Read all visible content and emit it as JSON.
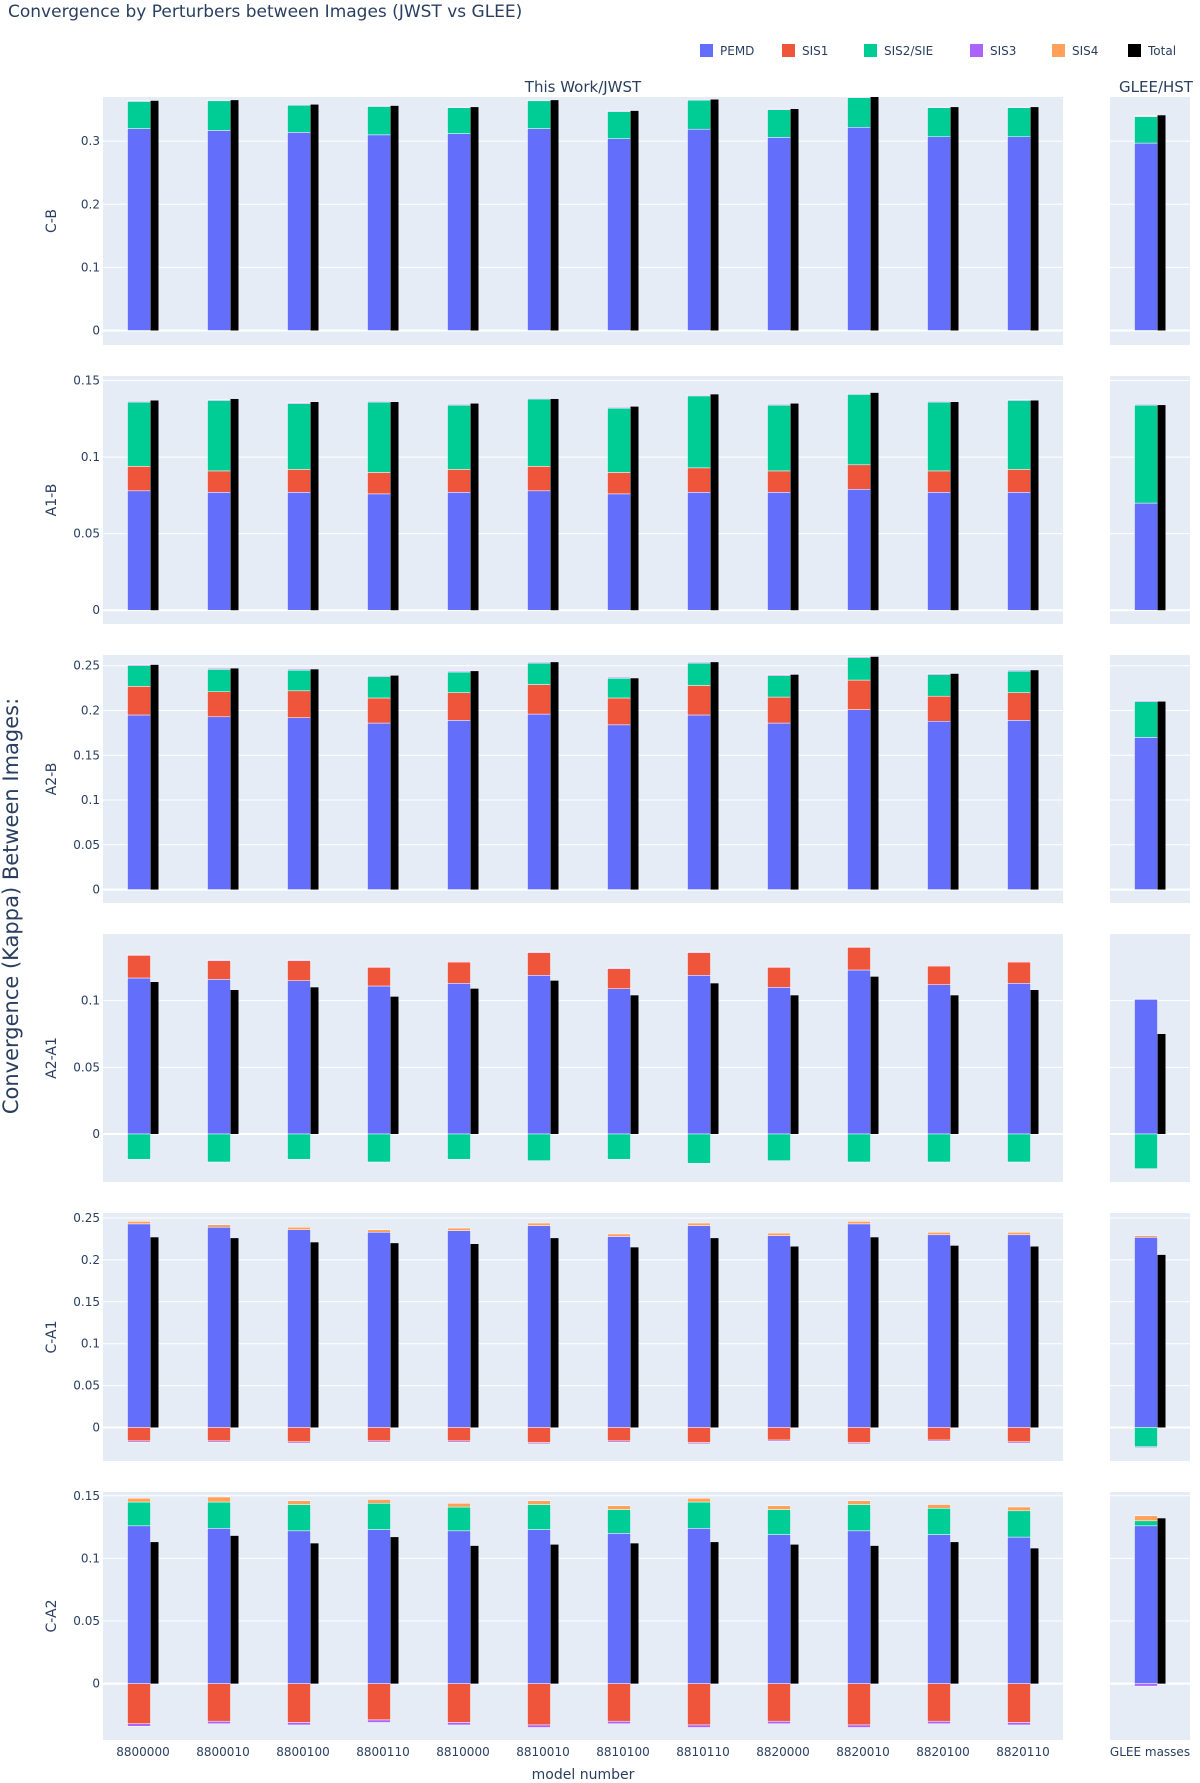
{
  "title": "Convergence by Perturbers between Images (JWST vs GLEE)",
  "legend": {
    "placement": "top-right, horizontal",
    "items": [
      {
        "name": "PEMD",
        "color": "#636EFA"
      },
      {
        "name": "SIS1",
        "color": "#EF553B"
      },
      {
        "name": "SIS2/SIE",
        "color": "#00CC96"
      },
      {
        "name": "SIS3",
        "color": "#AB63FA"
      },
      {
        "name": "SIS4",
        "color": "#FFA15A"
      },
      {
        "name": "Total",
        "color": "#000000"
      }
    ]
  },
  "subplot_titles": {
    "left": "This Work/JWST",
    "right": "GLEE/HST"
  },
  "ylabel": "Convergence (Kappa) Between Images:",
  "xlabel": "model number",
  "chart_data": {
    "type": "bar",
    "barmode": "relative stacked, with Total bar beside each stack",
    "grid": true,
    "categories": [
      "8800000",
      "8800010",
      "8800100",
      "8800110",
      "8810000",
      "8810010",
      "8810100",
      "8810110",
      "8820000",
      "8820010",
      "8820100",
      "8820110"
    ],
    "glee_category": "GLEE masses",
    "series_names": [
      "PEMD",
      "SIS1",
      "SIS2/SIE",
      "SIS3",
      "SIS4"
    ],
    "panels": [
      {
        "label": "C-B",
        "ylim": [
          -0.023,
          0.37
        ],
        "yticks": [
          0,
          0.1,
          0.2,
          0.3
        ],
        "ytick_labels": [
          "0",
          "0.1",
          "0.2",
          "0.3"
        ],
        "series": [
          {
            "name": "PEMD",
            "values": [
              0.32,
              0.317,
              0.314,
              0.31,
              0.312,
              0.32,
              0.304,
              0.319,
              0.306,
              0.322,
              0.307,
              0.307
            ]
          },
          {
            "name": "SIS1",
            "values": [
              0,
              0,
              0,
              0,
              0,
              0,
              0,
              0,
              0,
              0,
              0,
              0
            ]
          },
          {
            "name": "SIS2/SIE",
            "values": [
              0.043,
              0.047,
              0.043,
              0.045,
              0.041,
              0.044,
              0.043,
              0.046,
              0.044,
              0.047,
              0.046,
              0.046
            ]
          },
          {
            "name": "SIS3",
            "values": [
              0.001,
              0.001,
              0.001,
              0.001,
              0.001,
              0.001,
              0.001,
              0.001,
              0.001,
              0.001,
              0.001,
              0.001
            ]
          },
          {
            "name": "SIS4",
            "values": [
              0,
              0,
              0,
              0,
              0,
              0,
              0,
              0,
              0,
              0,
              0,
              0
            ]
          }
        ],
        "total": [
          0.364,
          0.365,
          0.358,
          0.356,
          0.354,
          0.365,
          0.348,
          0.366,
          0.351,
          0.37,
          0.354,
          0.354
        ],
        "glee": {
          "PEMD": 0.297,
          "SIS1": 0,
          "SIS2/SIE": 0.042,
          "SIS3": 0.001,
          "SIS4": 0.001,
          "Total": 0.341
        }
      },
      {
        "label": "A1-B",
        "ylim": [
          -0.009,
          0.153
        ],
        "yticks": [
          0,
          0.05,
          0.1,
          0.15
        ],
        "ytick_labels": [
          "0",
          "0.05",
          "0.1",
          "0.15"
        ],
        "series": [
          {
            "name": "PEMD",
            "values": [
              0.078,
              0.077,
              0.077,
              0.076,
              0.077,
              0.078,
              0.076,
              0.077,
              0.077,
              0.079,
              0.077,
              0.077
            ]
          },
          {
            "name": "SIS1",
            "values": [
              0.016,
              0.014,
              0.015,
              0.014,
              0.015,
              0.016,
              0.014,
              0.016,
              0.014,
              0.016,
              0.014,
              0.015
            ]
          },
          {
            "name": "SIS2/SIE",
            "values": [
              0.042,
              0.046,
              0.043,
              0.046,
              0.042,
              0.044,
              0.042,
              0.047,
              0.043,
              0.046,
              0.045,
              0.045
            ]
          },
          {
            "name": "SIS3",
            "values": [
              0.0005,
              0.0005,
              0.0005,
              0.0005,
              0.0005,
              0.0005,
              0.0005,
              0.0005,
              0.0005,
              0.0005,
              0.0005,
              0.0005
            ]
          },
          {
            "name": "SIS4",
            "values": [
              0,
              0,
              0,
              0,
              0,
              0,
              0,
              0,
              0,
              0,
              0,
              0
            ]
          }
        ],
        "total": [
          0.137,
          0.138,
          0.136,
          0.136,
          0.135,
          0.138,
          0.133,
          0.141,
          0.135,
          0.142,
          0.136,
          0.137
        ],
        "glee": {
          "PEMD": 0.07,
          "SIS1": 0,
          "SIS2/SIE": 0.064,
          "SIS3": 0.0005,
          "SIS4": 0,
          "Total": 0.134
        }
      },
      {
        "label": "A2-B",
        "ylim": [
          -0.015,
          0.262
        ],
        "yticks": [
          0,
          0.05,
          0.1,
          0.15,
          0.2,
          0.25
        ],
        "ytick_labels": [
          "0",
          "0.05",
          "0.1",
          "0.15",
          "0.2",
          "0.25"
        ],
        "series": [
          {
            "name": "PEMD",
            "values": [
              0.195,
              0.193,
              0.192,
              0.186,
              0.189,
              0.196,
              0.184,
              0.195,
              0.186,
              0.201,
              0.188,
              0.189
            ]
          },
          {
            "name": "SIS1",
            "values": [
              0.032,
              0.028,
              0.03,
              0.028,
              0.031,
              0.033,
              0.03,
              0.033,
              0.029,
              0.033,
              0.028,
              0.031
            ]
          },
          {
            "name": "SIS2/SIE",
            "values": [
              0.023,
              0.025,
              0.023,
              0.024,
              0.023,
              0.024,
              0.022,
              0.025,
              0.024,
              0.025,
              0.024,
              0.024
            ]
          },
          {
            "name": "SIS3",
            "values": [
              0.001,
              0.001,
              0.001,
              0.001,
              0.001,
              0.001,
              0.001,
              0.001,
              0.001,
              0.001,
              0.001,
              0.001
            ]
          },
          {
            "name": "SIS4",
            "values": [
              0,
              0,
              0,
              0,
              0,
              0,
              0,
              0,
              0,
              0,
              0,
              0
            ]
          }
        ],
        "total": [
          0.251,
          0.247,
          0.246,
          0.239,
          0.244,
          0.254,
          0.236,
          0.254,
          0.24,
          0.26,
          0.241,
          0.245
        ],
        "glee": {
          "PEMD": 0.17,
          "SIS1": 0,
          "SIS2/SIE": 0.04,
          "SIS3": 0.001,
          "SIS4": 0,
          "Total": 0.21
        }
      },
      {
        "label": "A2-A1",
        "ylim": [
          -0.036,
          0.15
        ],
        "yticks": [
          0,
          0.05,
          0.1
        ],
        "ytick_labels": [
          "0",
          "0.05",
          "0.1"
        ],
        "series": [
          {
            "name": "PEMD",
            "values": [
              0.117,
              0.116,
              0.115,
              0.111,
              0.113,
              0.119,
              0.109,
              0.119,
              0.11,
              0.123,
              0.112,
              0.113
            ]
          },
          {
            "name": "SIS1",
            "values": [
              0.017,
              0.014,
              0.015,
              0.014,
              0.016,
              0.017,
              0.015,
              0.017,
              0.015,
              0.017,
              0.014,
              0.016
            ]
          },
          {
            "name": "SIS2/SIE",
            "values": [
              -0.019,
              -0.021,
              -0.019,
              -0.021,
              -0.019,
              -0.02,
              -0.019,
              -0.022,
              -0.02,
              -0.021,
              -0.021,
              -0.021
            ]
          },
          {
            "name": "SIS3",
            "values": [
              0.0005,
              0.0005,
              0.0005,
              0.0005,
              0.0005,
              0.0005,
              0.0005,
              0.0005,
              0.0005,
              0.0005,
              0.0005,
              0.0005
            ]
          },
          {
            "name": "SIS4",
            "values": [
              0,
              0,
              0,
              0,
              0,
              0,
              0,
              0,
              0,
              0,
              0,
              0
            ]
          }
        ],
        "total": [
          0.114,
          0.108,
          0.11,
          0.103,
          0.109,
          0.115,
          0.104,
          0.113,
          0.104,
          0.118,
          0.104,
          0.108
        ],
        "glee": {
          "PEMD": 0.101,
          "SIS1": 0,
          "SIS2/SIE": -0.026,
          "SIS3": 0.0005,
          "SIS4": 0,
          "Total": 0.075
        }
      },
      {
        "label": "C-A1",
        "ylim": [
          -0.04,
          0.256
        ],
        "yticks": [
          0,
          0.05,
          0.1,
          0.15,
          0.2,
          0.25
        ],
        "ytick_labels": [
          "0",
          "0.05",
          "0.1",
          "0.15",
          "0.2",
          "0.25"
        ],
        "series": [
          {
            "name": "PEMD",
            "values": [
              0.243,
              0.239,
              0.236,
              0.233,
              0.235,
              0.241,
              0.228,
              0.241,
              0.229,
              0.243,
              0.23,
              0.23
            ]
          },
          {
            "name": "SIS1",
            "values": [
              -0.016,
              -0.016,
              -0.017,
              -0.016,
              -0.016,
              -0.018,
              -0.016,
              -0.018,
              -0.015,
              -0.018,
              -0.015,
              -0.017
            ]
          },
          {
            "name": "SIS2/SIE",
            "values": [
              0,
              0,
              0,
              0,
              0,
              0,
              0,
              0,
              0,
              0,
              0,
              0
            ]
          },
          {
            "name": "SIS3",
            "values": [
              -0.0015,
              -0.0015,
              -0.0015,
              -0.0015,
              -0.0015,
              -0.0015,
              -0.0015,
              -0.0015,
              -0.0015,
              -0.0015,
              -0.0015,
              -0.0015
            ]
          },
          {
            "name": "SIS4",
            "values": [
              0.003,
              0.003,
              0.003,
              0.003,
              0.003,
              0.003,
              0.003,
              0.003,
              0.003,
              0.003,
              0.003,
              0.003
            ]
          }
        ],
        "total": [
          0.227,
          0.226,
          0.221,
          0.22,
          0.219,
          0.226,
          0.215,
          0.226,
          0.216,
          0.227,
          0.217,
          0.216
        ],
        "glee": {
          "PEMD": 0.227,
          "SIS1": 0,
          "SIS2/SIE": -0.023,
          "SIS3": -0.001,
          "SIS4": 0.002,
          "Total": 0.206
        }
      },
      {
        "label": "C-A2",
        "ylim": [
          -0.045,
          0.153
        ],
        "yticks": [
          0,
          0.05,
          0.1,
          0.15
        ],
        "ytick_labels": [
          "0",
          "0.05",
          "0.1",
          "0.15"
        ],
        "series": [
          {
            "name": "PEMD",
            "values": [
              0.126,
              0.124,
              0.122,
              0.123,
              0.122,
              0.123,
              0.12,
              0.124,
              0.119,
              0.122,
              0.119,
              0.117
            ]
          },
          {
            "name": "SIS1",
            "values": [
              -0.032,
              -0.03,
              -0.031,
              -0.029,
              -0.031,
              -0.033,
              -0.03,
              -0.033,
              -0.03,
              -0.033,
              -0.03,
              -0.031
            ]
          },
          {
            "name": "SIS2/SIE",
            "values": [
              0.019,
              0.021,
              0.021,
              0.021,
              0.019,
              0.02,
              0.019,
              0.021,
              0.02,
              0.021,
              0.021,
              0.021
            ]
          },
          {
            "name": "SIS3",
            "values": [
              -0.002,
              -0.002,
              -0.002,
              -0.002,
              -0.002,
              -0.002,
              -0.002,
              -0.002,
              -0.002,
              -0.002,
              -0.002,
              -0.002
            ]
          },
          {
            "name": "SIS4",
            "values": [
              0.003,
              0.004,
              0.003,
              0.003,
              0.003,
              0.003,
              0.003,
              0.003,
              0.003,
              0.003,
              0.003,
              0.003
            ]
          }
        ],
        "total": [
          0.113,
          0.118,
          0.112,
          0.117,
          0.11,
          0.111,
          0.112,
          0.113,
          0.111,
          0.11,
          0.113,
          0.108
        ],
        "glee": {
          "PEMD": 0.126,
          "SIS1": 0,
          "SIS2/SIE": 0.004,
          "SIS3": -0.002,
          "SIS4": 0.004,
          "Total": 0.132
        }
      }
    ]
  }
}
